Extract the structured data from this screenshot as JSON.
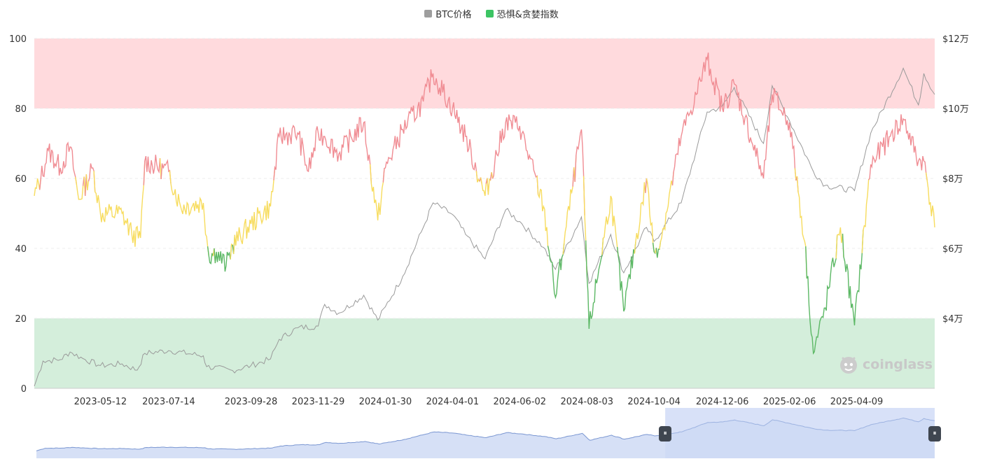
{
  "legend": [
    {
      "label": "BTC价格",
      "color": "#9e9e9e"
    },
    {
      "label": "恐惧&贪婪指数",
      "color": "#3cc463"
    }
  ],
  "brand": {
    "name": "coinglass",
    "icon": "coinglass-logo-icon"
  },
  "zoom": {
    "start": 0.7,
    "end": 1.0
  },
  "chart_data": {
    "type": "line",
    "x_start": "2023-03-12",
    "x_end": "2025-06-20",
    "x_ticks": [
      "2023-05-12",
      "2023-07-14",
      "2023-09-28",
      "2023-11-29",
      "2024-01-30",
      "2024-04-01",
      "2024-06-02",
      "2024-08-03",
      "2024-10-04",
      "2024-12-06",
      "2025-02-06",
      "2025-04-09"
    ],
    "y_left": {
      "min": 0,
      "max": 100,
      "ticks": [
        0,
        20,
        40,
        60,
        80,
        100
      ]
    },
    "y_right": {
      "min": 20000,
      "max": 120000,
      "ticks": [
        40000,
        60000,
        80000,
        100000,
        120000
      ],
      "tick_labels": [
        "$4万",
        "$6万",
        "$8万",
        "$10万",
        "$12万"
      ]
    },
    "zones": [
      {
        "from": 80,
        "to": 100,
        "color": "#ffdadd"
      },
      {
        "from": 0,
        "to": 20,
        "color": "#d4eedb"
      }
    ],
    "fg_colors": {
      "greed": "#f08c93",
      "neutral": "#f7dc5e",
      "fear": "#5cb865"
    },
    "series": [
      {
        "name": "BTC价格",
        "axis": "right",
        "color": "#9a9a9a",
        "points": [
          [
            "2023-03-12",
            20600
          ],
          [
            "2023-03-20",
            27800
          ],
          [
            "2023-04-05",
            28200
          ],
          [
            "2023-04-14",
            30400
          ],
          [
            "2023-04-26",
            28500
          ],
          [
            "2023-05-12",
            26500
          ],
          [
            "2023-06-01",
            27000
          ],
          [
            "2023-06-15",
            25200
          ],
          [
            "2023-06-22",
            30000
          ],
          [
            "2023-07-14",
            30800
          ],
          [
            "2023-08-15",
            29300
          ],
          [
            "2023-08-18",
            26200
          ],
          [
            "2023-09-11",
            25100
          ],
          [
            "2023-09-28",
            26500
          ],
          [
            "2023-10-16",
            28400
          ],
          [
            "2023-10-24",
            34000
          ],
          [
            "2023-11-10",
            37300
          ],
          [
            "2023-11-29",
            37800
          ],
          [
            "2023-12-05",
            44000
          ],
          [
            "2023-12-18",
            41500
          ],
          [
            "2024-01-10",
            46600
          ],
          [
            "2024-01-23",
            39500
          ],
          [
            "2024-01-30",
            43300
          ],
          [
            "2024-02-15",
            52000
          ],
          [
            "2024-03-05",
            66000
          ],
          [
            "2024-03-14",
            73000
          ],
          [
            "2024-04-01",
            69700
          ],
          [
            "2024-04-13",
            64000
          ],
          [
            "2024-05-01",
            57000
          ],
          [
            "2024-05-20",
            71000
          ],
          [
            "2024-06-02",
            67700
          ],
          [
            "2024-06-24",
            60300
          ],
          [
            "2024-07-05",
            54000
          ],
          [
            "2024-07-29",
            69000
          ],
          [
            "2024-08-05",
            50000
          ],
          [
            "2024-08-25",
            64000
          ],
          [
            "2024-09-06",
            53000
          ],
          [
            "2024-09-27",
            66000
          ],
          [
            "2024-10-04",
            62000
          ],
          [
            "2024-10-29",
            73000
          ],
          [
            "2024-11-12",
            88000
          ],
          [
            "2024-11-22",
            99000
          ],
          [
            "2024-12-06",
            100500
          ],
          [
            "2024-12-17",
            106000
          ],
          [
            "2025-01-13",
            90000
          ],
          [
            "2025-01-21",
            106500
          ],
          [
            "2025-02-06",
            96500
          ],
          [
            "2025-02-28",
            82000
          ],
          [
            "2025-03-11",
            78000
          ],
          [
            "2025-04-07",
            76500
          ],
          [
            "2025-04-22",
            93000
          ],
          [
            "2025-05-22",
            111500
          ],
          [
            "2025-06-05",
            101000
          ],
          [
            "2025-06-10",
            110000
          ],
          [
            "2025-06-20",
            104000
          ]
        ]
      },
      {
        "name": "恐惧&贪婪指数",
        "axis": "left",
        "points": [
          [
            "2023-03-12",
            55
          ],
          [
            "2023-03-18",
            60
          ],
          [
            "2023-03-25",
            68
          ],
          [
            "2023-04-05",
            63
          ],
          [
            "2023-04-14",
            69
          ],
          [
            "2023-04-22",
            54
          ],
          [
            "2023-05-05",
            63
          ],
          [
            "2023-05-12",
            50
          ],
          [
            "2023-06-01",
            50
          ],
          [
            "2023-06-10",
            44
          ],
          [
            "2023-06-18",
            43
          ],
          [
            "2023-06-22",
            65
          ],
          [
            "2023-07-14",
            62
          ],
          [
            "2023-07-25",
            52
          ],
          [
            "2023-08-15",
            53
          ],
          [
            "2023-08-20",
            38
          ],
          [
            "2023-08-27",
            39
          ],
          [
            "2023-09-05",
            35
          ],
          [
            "2023-09-11",
            41
          ],
          [
            "2023-09-28",
            47
          ],
          [
            "2023-10-16",
            52
          ],
          [
            "2023-10-24",
            72
          ],
          [
            "2023-11-10",
            73
          ],
          [
            "2023-11-20",
            62
          ],
          [
            "2023-11-29",
            73
          ],
          [
            "2023-12-05",
            72
          ],
          [
            "2023-12-18",
            67
          ],
          [
            "2024-01-10",
            76
          ],
          [
            "2024-01-23",
            48
          ],
          [
            "2024-01-30",
            63
          ],
          [
            "2024-02-15",
            74
          ],
          [
            "2024-03-05",
            82
          ],
          [
            "2024-03-14",
            90
          ],
          [
            "2024-04-01",
            80
          ],
          [
            "2024-04-13",
            72
          ],
          [
            "2024-05-01",
            55
          ],
          [
            "2024-05-20",
            76
          ],
          [
            "2024-06-02",
            75
          ],
          [
            "2024-06-24",
            52
          ],
          [
            "2024-07-05",
            26
          ],
          [
            "2024-07-20",
            56
          ],
          [
            "2024-07-29",
            74
          ],
          [
            "2024-08-05",
            17
          ],
          [
            "2024-08-25",
            55
          ],
          [
            "2024-09-06",
            22
          ],
          [
            "2024-09-27",
            60
          ],
          [
            "2024-10-04",
            39
          ],
          [
            "2024-10-10",
            42
          ],
          [
            "2024-10-29",
            72
          ],
          [
            "2024-11-12",
            84
          ],
          [
            "2024-11-22",
            94
          ],
          [
            "2024-12-06",
            80
          ],
          [
            "2024-12-17",
            87
          ],
          [
            "2025-01-13",
            60
          ],
          [
            "2025-01-21",
            84
          ],
          [
            "2025-02-06",
            76
          ],
          [
            "2025-02-20",
            42
          ],
          [
            "2025-02-28",
            10
          ],
          [
            "2025-03-11",
            23
          ],
          [
            "2025-03-25",
            46
          ],
          [
            "2025-04-07",
            18
          ],
          [
            "2025-04-22",
            64
          ],
          [
            "2025-05-10",
            72
          ],
          [
            "2025-05-22",
            77
          ],
          [
            "2025-06-05",
            65
          ],
          [
            "2025-06-10",
            65
          ],
          [
            "2025-06-20",
            46
          ]
        ]
      }
    ]
  }
}
